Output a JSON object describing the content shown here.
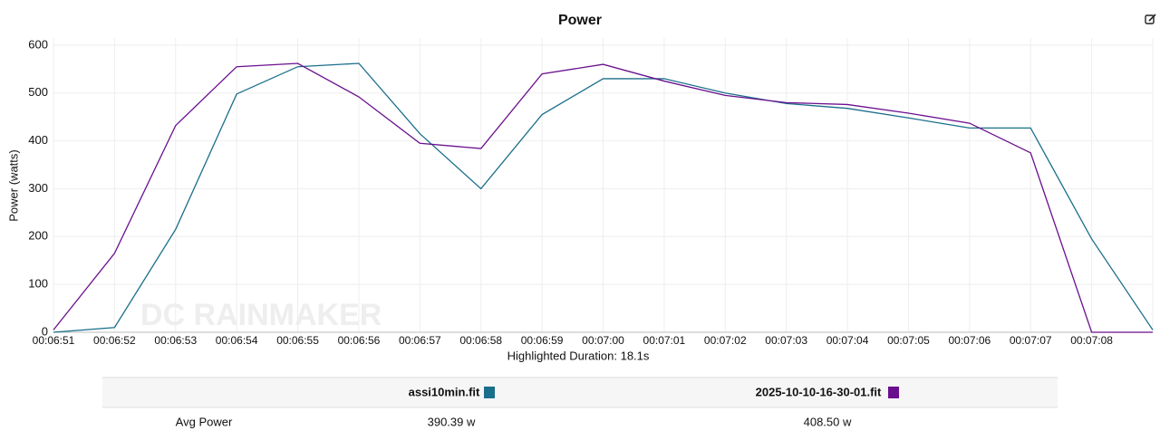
{
  "chart_data": {
    "type": "line",
    "title": "Power",
    "ylabel": "Power (watts)",
    "xlabel": "Highlighted Duration: 18.1s",
    "watermark": "DC RAINMAKER",
    "categories": [
      "00:06:51",
      "00:06:52",
      "00:06:53",
      "00:06:54",
      "00:06:55",
      "00:06:56",
      "00:06:57",
      "00:06:58",
      "00:06:59",
      "00:07:00",
      "00:07:01",
      "00:07:02",
      "00:07:03",
      "00:07:04",
      "00:07:05",
      "00:07:06",
      "00:07:07",
      "00:07:08",
      null
    ],
    "series": [
      {
        "name": "assi10min.fit",
        "color": "#1a6f8a",
        "values": [
          0,
          10,
          215,
          498,
          555,
          562,
          415,
          300,
          455,
          530,
          530,
          500,
          478,
          468,
          448,
          427,
          427,
          195,
          5
        ]
      },
      {
        "name": "2025-10-10-16-30-01.fit",
        "color": "#6a0f8e",
        "values": [
          5,
          165,
          432,
          555,
          562,
          492,
          395,
          384,
          540,
          560,
          525,
          495,
          480,
          476,
          458,
          437,
          375,
          0,
          0
        ]
      }
    ],
    "ylim": [
      0,
      615
    ],
    "yticks": [
      0,
      100,
      200,
      300,
      400,
      500,
      600
    ],
    "grid": true,
    "summary": {
      "label": "Avg Power",
      "values": [
        "390.39 w",
        "408.50 w"
      ]
    }
  }
}
